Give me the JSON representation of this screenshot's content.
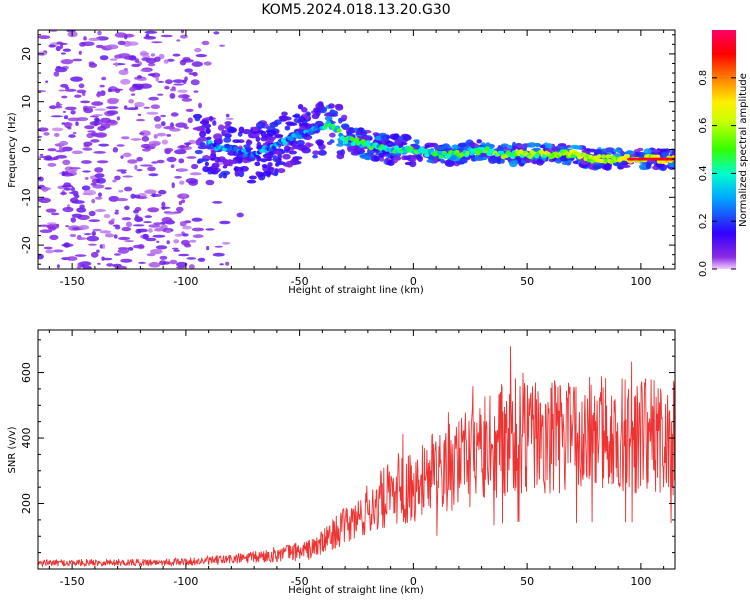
{
  "title": "KOM5.2024.018.13.20.G30",
  "chart_data": [
    {
      "type": "heatmap",
      "xlabel": "Height of straight line (km)",
      "ylabel": "Frequency (Hz)",
      "xlim": [
        -165,
        115
      ],
      "ylim": [
        -25,
        25
      ],
      "x_ticks": [
        -150,
        -100,
        -50,
        0,
        50,
        100
      ],
      "y_ticks": [
        -20,
        -10,
        0,
        10,
        20
      ],
      "colorbar": {
        "label": "Normalized spectral amplitude",
        "range": [
          0,
          1
        ],
        "ticks": [
          0.0,
          0.2,
          0.4,
          0.6,
          0.8
        ],
        "colormap": "rainbow (violet-blue-cyan-green-yellow-red-magenta)"
      },
      "ridge_frequency": {
        "x": [
          -90,
          -80,
          -70,
          -60,
          -50,
          -40,
          -35,
          -30,
          -20,
          -10,
          0,
          10,
          20,
          30,
          40,
          50,
          60,
          70,
          80,
          90,
          100,
          112
        ],
        "y": [
          1,
          0,
          -1,
          1,
          3,
          5,
          5,
          2,
          1,
          0,
          0,
          -1,
          -1,
          0,
          -1,
          -1,
          -1,
          -1,
          -2,
          -2,
          -2,
          -2
        ]
      }
    },
    {
      "type": "line",
      "xlabel": "Height of straight line (km)",
      "ylabel": "SNR (v/v)",
      "xlim": [
        -165,
        115
      ],
      "ylim": [
        0,
        730
      ],
      "x_ticks": [
        -150,
        -100,
        -50,
        0,
        50,
        100
      ],
      "y_ticks": [
        200,
        400,
        600
      ],
      "series_color": "#ee3333",
      "snr_envelope": {
        "x": [
          -165,
          -140,
          -120,
          -100,
          -90,
          -80,
          -70,
          -60,
          -50,
          -45,
          -40,
          -35,
          -30,
          -25,
          -20,
          -10,
          0,
          10,
          20,
          30,
          40,
          50,
          60,
          70,
          80,
          90,
          100,
          115
        ],
        "y": [
          18,
          20,
          20,
          22,
          25,
          30,
          35,
          45,
          55,
          60,
          80,
          110,
          130,
          150,
          180,
          230,
          260,
          290,
          320,
          360,
          400,
          420,
          410,
          400,
          410,
          405,
          410,
          400
        ]
      }
    }
  ]
}
